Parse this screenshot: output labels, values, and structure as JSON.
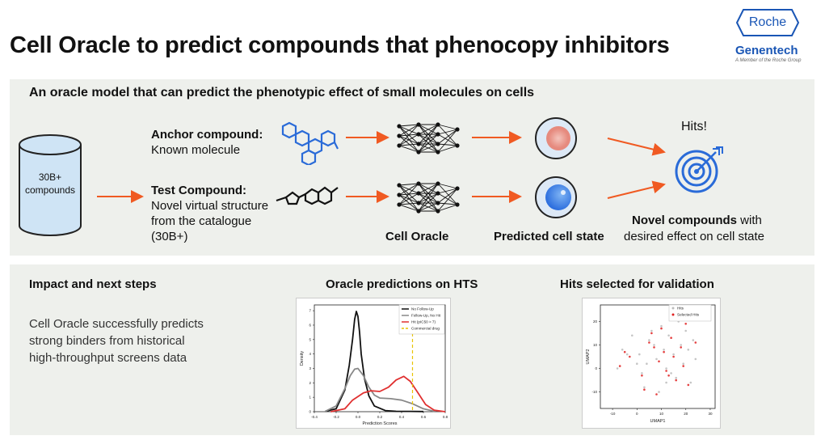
{
  "title": "Cell Oracle to predict compounds that phenocopy inhibitors",
  "logo": {
    "roche": "Roche",
    "brand": "Genentech",
    "tagline": "A Member of the Roche Group"
  },
  "top_panel": {
    "heading": "An oracle model that can predict the phenotypic effect of small molecules on cells",
    "cylinder_label_1": "30B+",
    "cylinder_label_2": "compounds",
    "anchor_title": "Anchor compound:",
    "anchor_desc": "Known molecule",
    "test_title": "Test Compound:",
    "test_desc_1": "Novel virtual structure",
    "test_desc_2": "from the catalogue",
    "test_desc_3": "(30B+)",
    "cell_oracle": "Cell Oracle",
    "predicted_state": "Predicted cell state",
    "hits": "Hits!",
    "novel_bold": "Novel compounds",
    "novel_rest": " with",
    "novel_line2": "desired effect on cell state",
    "arrow_color": "#f05a22"
  },
  "bottom_panel": {
    "impact_title": "Impact and next steps",
    "impact_text_1": "Cell Oracle successfully predicts",
    "impact_text_2": "strong binders from historical",
    "impact_text_3": "high-throughput screens data",
    "hts_title": "Oracle predictions on HTS",
    "hits_title": "Hits selected for validation"
  },
  "chart_data": [
    {
      "type": "line",
      "title": "",
      "xlabel": "Prediction Scores",
      "ylabel": "Density",
      "xlim": [
        -0.4,
        0.8
      ],
      "ylim": [
        0,
        7.4
      ],
      "xticks": [
        "-0.4",
        "-0.2",
        "0.0",
        "0.2",
        "0.4",
        "0.6",
        "0.8"
      ],
      "yticks": [
        "0",
        "1",
        "2",
        "3",
        "4",
        "5",
        "6",
        "7"
      ],
      "legend_position": "top-right",
      "series": [
        {
          "name": "No Follow-Up",
          "color": "#111111",
          "x": [
            -0.3,
            -0.2,
            -0.12,
            -0.08,
            -0.05,
            -0.03,
            -0.015,
            0.0,
            0.015,
            0.03,
            0.06,
            0.1,
            0.15,
            0.25,
            0.35,
            0.45,
            0.6
          ],
          "y": [
            0.02,
            0.2,
            1.5,
            3.2,
            5.0,
            6.4,
            6.95,
            6.6,
            5.5,
            4.0,
            2.3,
            1.1,
            0.4,
            0.08,
            0.03,
            0.02,
            0.01
          ]
        },
        {
          "name": "Follow-Up, No Hit",
          "color": "#888888",
          "x": [
            -0.3,
            -0.2,
            -0.12,
            -0.07,
            -0.03,
            0.0,
            0.05,
            0.1,
            0.15,
            0.2,
            0.3,
            0.4,
            0.5,
            0.6,
            0.7
          ],
          "y": [
            0.02,
            0.4,
            1.6,
            2.5,
            2.95,
            3.0,
            2.5,
            1.7,
            1.15,
            0.95,
            0.9,
            0.8,
            0.55,
            0.2,
            0.03
          ]
        },
        {
          "name": "Hit (pIC50 > 7)",
          "color": "#e03030",
          "x": [
            -0.25,
            -0.12,
            -0.05,
            0.05,
            0.12,
            0.2,
            0.28,
            0.35,
            0.42,
            0.48,
            0.55,
            0.62,
            0.7,
            0.8
          ],
          "y": [
            0.0,
            0.2,
            0.8,
            1.3,
            1.45,
            1.4,
            1.7,
            2.2,
            2.45,
            2.1,
            1.3,
            0.5,
            0.1,
            0.0
          ]
        }
      ],
      "reference_lines": [
        {
          "name": "Commercial drug",
          "color": "#e8c400",
          "x": 0.5
        }
      ]
    },
    {
      "type": "scatter",
      "xlabel": "UMAP1",
      "ylabel": "UMAP2",
      "xlim": [
        -15,
        32
      ],
      "ylim": [
        -17,
        27
      ],
      "xticks": [
        "-10",
        "0",
        "10",
        "20",
        "30"
      ],
      "yticks": [
        "-10",
        "0",
        "10",
        "20"
      ],
      "legend_position": "top-right",
      "series": [
        {
          "name": "Hits",
          "color": "#bbbbbb",
          "x": [
            -6,
            -4,
            2,
            5,
            7,
            8,
            10,
            12,
            13,
            15,
            16,
            18,
            19,
            20,
            22,
            23,
            24,
            3,
            -2,
            0,
            9,
            11,
            14,
            17,
            -8,
            6,
            21,
            1,
            4,
            12
          ],
          "y": [
            8,
            6,
            -2,
            12,
            10,
            4,
            18,
            0,
            14,
            6,
            -4,
            10,
            2,
            16,
            -6,
            12,
            4,
            -8,
            14,
            2,
            -10,
            8,
            -2,
            20,
            0,
            16,
            8,
            6,
            2,
            -6
          ]
        },
        {
          "name": "Selected Hits",
          "color": "#e02020",
          "x": [
            -5,
            -3,
            2,
            5,
            7,
            9,
            10,
            12,
            14,
            15,
            16,
            18,
            19,
            21,
            24,
            3,
            6,
            11,
            13,
            20,
            8,
            -7
          ],
          "y": [
            7,
            5,
            -3,
            11,
            9,
            3,
            17,
            -1,
            13,
            5,
            -5,
            9,
            1,
            -7,
            11,
            -9,
            15,
            7,
            -3,
            19,
            -11,
            1
          ]
        }
      ]
    }
  ]
}
